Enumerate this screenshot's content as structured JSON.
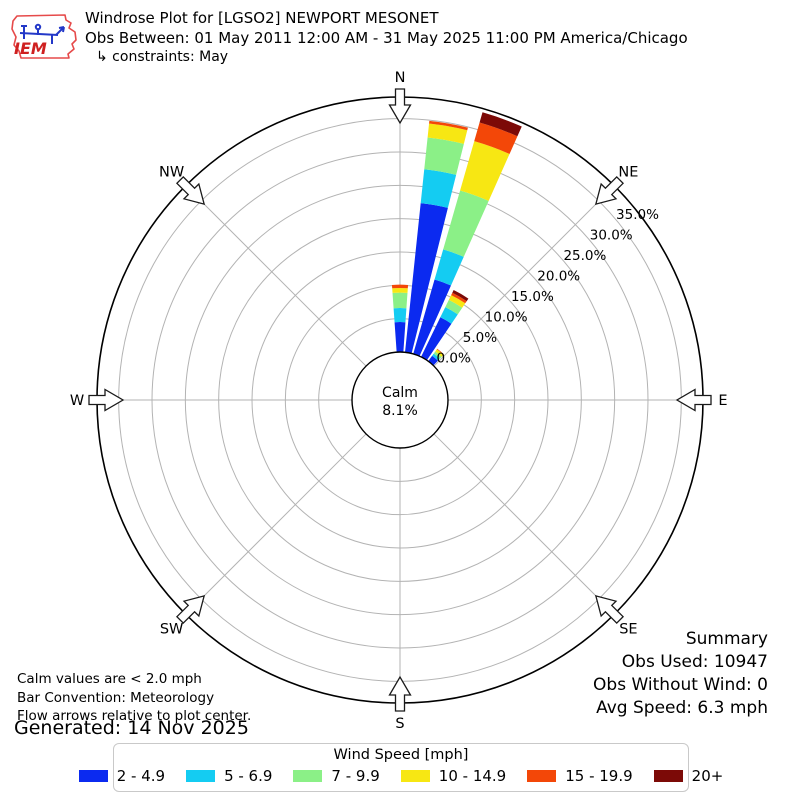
{
  "logo": {
    "text": "IEM"
  },
  "header": {
    "title": "Windrose Plot for [LGSO2] NEWPORT MESONET",
    "obs_between": "Obs Between: 01 May 2011 12:00 AM - 31 May 2025 11:00 PM America/Chicago",
    "constraints": "↳ constraints: May"
  },
  "plot": {
    "compass": [
      "N",
      "NE",
      "E",
      "SE",
      "S",
      "SW",
      "W",
      "NW"
    ],
    "ring_labels": [
      "0.0%",
      "5.0%",
      "10.0%",
      "15.0%",
      "20.0%",
      "25.0%",
      "30.0%",
      "35.0%"
    ],
    "calm_label": "Calm",
    "calm_value": "8.1%"
  },
  "chart_data": {
    "type": "windrose stacked polar bar",
    "units": "mph",
    "calm_pct": 8.1,
    "radial_axis": {
      "ticks_pct": [
        0,
        5,
        10,
        15,
        20,
        25,
        30,
        35
      ],
      "label_angle_deg": 52,
      "grid": "on"
    },
    "bar_width_deg": 8,
    "speed_bins": [
      {
        "label": "2 - 4.9",
        "color": "#0b2af0"
      },
      {
        "label": "5 - 6.9",
        "color": "#14ccf2"
      },
      {
        "label": "7 - 9.9",
        "color": "#8bf087"
      },
      {
        "label": "10 - 14.9",
        "color": "#f7e713"
      },
      {
        "label": "15 - 19.9",
        "color": "#f34708"
      },
      {
        "label": "20+",
        "color": "#7c0a07"
      }
    ],
    "directions": [
      {
        "dir_deg": 0,
        "stack_pct": [
          4.5,
          2.1,
          2.3,
          0.7,
          0.5,
          0
        ],
        "total_pct": 10.1
      },
      {
        "dir_deg": 10,
        "stack_pct": [
          22.5,
          5.1,
          4.8,
          2.1,
          0.4,
          0
        ],
        "total_pct": 34.9
      },
      {
        "dir_deg": 20,
        "stack_pct": [
          11.6,
          4.7,
          9.2,
          7.7,
          2.9,
          1.6
        ],
        "total_pct": 37.7
      },
      {
        "dir_deg": 30,
        "stack_pct": [
          6.6,
          1.7,
          1.2,
          0.8,
          0.4,
          0.45
        ],
        "total_pct": 11.15
      },
      {
        "dir_deg": 40,
        "stack_pct": [
          1.0,
          0.4,
          0.4,
          0.4,
          0.1,
          0
        ],
        "total_pct": 2.3
      }
    ]
  },
  "summary": {
    "title": "Summary",
    "obs_used": "Obs Used: 10947",
    "obs_without_wind": "Obs Without Wind: 0",
    "avg_speed": "Avg Speed: 6.3 mph"
  },
  "notes": {
    "calm": "Calm values are < 2.0 mph",
    "convention": "Bar Convention: Meteorology",
    "arrows": "Flow arrows relative to plot center.",
    "generated": "Generated: 14 Nov 2025"
  },
  "legend": {
    "title": "Wind Speed [mph]"
  }
}
